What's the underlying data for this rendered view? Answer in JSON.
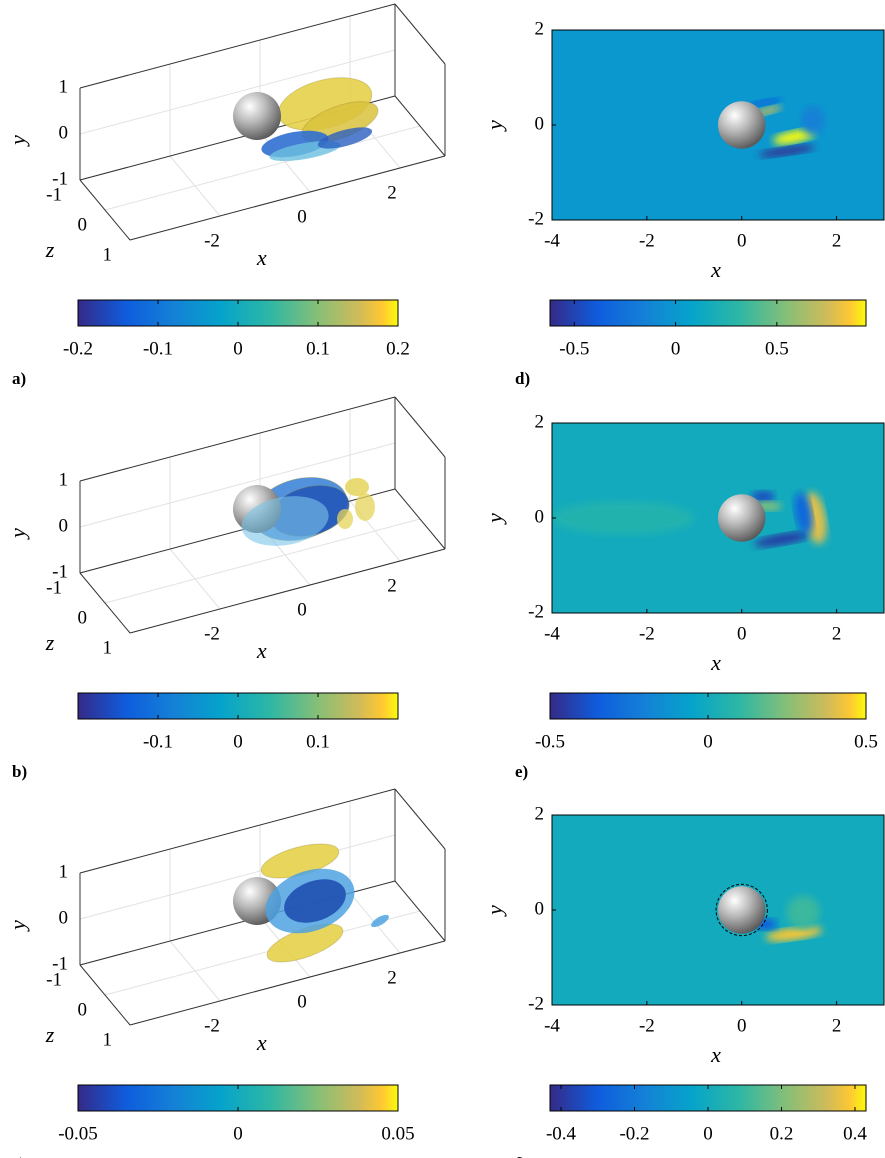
{
  "chart_data": [
    {
      "type": "isosurface3d",
      "label": "a)",
      "xlabel": "x",
      "ylabel": "y",
      "zlabel": "z",
      "xlim": [
        -4,
        3
      ],
      "ylim": [
        -1,
        1
      ],
      "zlim": [
        -1,
        1
      ],
      "xticks": [
        -2,
        0,
        2
      ],
      "yticks": [
        -1,
        0,
        1
      ],
      "zticks": [
        -1,
        0,
        1
      ],
      "colorbar": {
        "clim": [
          -0.2,
          0.2
        ],
        "ticks": [
          -0.2,
          -0.1,
          0,
          0.1,
          0.2
        ]
      }
    },
    {
      "type": "isosurface3d",
      "label": "b)",
      "xlabel": "x",
      "ylabel": "y",
      "zlabel": "z",
      "xlim": [
        -4,
        3
      ],
      "ylim": [
        -1,
        1
      ],
      "zlim": [
        -1,
        1
      ],
      "xticks": [
        -2,
        0,
        2
      ],
      "yticks": [
        -1,
        0,
        1
      ],
      "zticks": [
        -1,
        0,
        1
      ],
      "colorbar": {
        "clim": [
          -0.2,
          0.2
        ],
        "ticks": [
          -0.1,
          0,
          0.1
        ]
      }
    },
    {
      "type": "isosurface3d",
      "label": "c)",
      "xlabel": "x",
      "ylabel": "y",
      "zlabel": "z",
      "xlim": [
        -4,
        3
      ],
      "ylim": [
        -1,
        1
      ],
      "zlim": [
        -1,
        1
      ],
      "xticks": [
        -2,
        0,
        2
      ],
      "yticks": [
        -1,
        0,
        1
      ],
      "zticks": [
        -1,
        0,
        1
      ],
      "colorbar": {
        "clim": [
          -0.05,
          0.05
        ],
        "ticks": [
          -0.05,
          0,
          0.05
        ]
      }
    },
    {
      "type": "contour",
      "label": "d)",
      "xlabel": "x",
      "ylabel": "y",
      "xlim": [
        -4,
        3
      ],
      "ylim": [
        -2,
        2
      ],
      "xticks": [
        -4,
        -2,
        0,
        2
      ],
      "yticks": [
        -2,
        0,
        2
      ],
      "colorbar": {
        "clim": [
          -0.62,
          0.94
        ],
        "ticks": [
          -0.5,
          0,
          0.5
        ]
      }
    },
    {
      "type": "contour",
      "label": "e)",
      "xlabel": "x",
      "ylabel": "y",
      "xlim": [
        -4,
        3
      ],
      "ylim": [
        -2,
        2
      ],
      "xticks": [
        -4,
        -2,
        0,
        2
      ],
      "yticks": [
        -2,
        0,
        2
      ],
      "colorbar": {
        "clim": [
          -0.5,
          0.5
        ],
        "ticks": [
          -0.5,
          0,
          0.5
        ]
      }
    },
    {
      "type": "contour",
      "label": "f)",
      "xlabel": "x",
      "ylabel": "y",
      "xlim": [
        -4,
        3
      ],
      "ylim": [
        -2,
        2
      ],
      "xticks": [
        -4,
        -2,
        0,
        2
      ],
      "yticks": [
        -2,
        0,
        2
      ],
      "colorbar": {
        "clim": [
          -0.43,
          0.43
        ],
        "ticks": [
          -0.4,
          -0.2,
          0,
          0.2,
          0.4
        ]
      }
    }
  ]
}
